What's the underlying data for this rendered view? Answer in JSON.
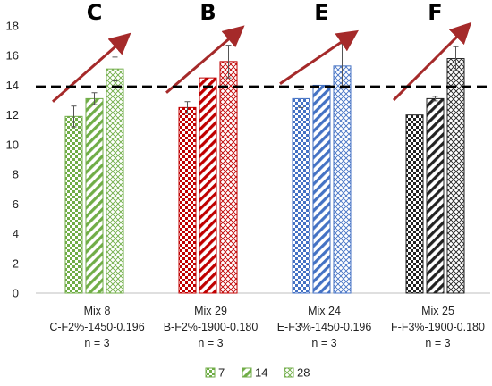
{
  "chart_data": {
    "type": "bar",
    "ylim": [
      0,
      18
    ],
    "yticks": [
      0,
      2,
      4,
      6,
      8,
      10,
      12,
      14,
      16,
      18
    ],
    "reference_line": 13.9,
    "legend": [
      "7",
      "14",
      "28"
    ],
    "groups": [
      {
        "letter": "C",
        "label_lines": [
          "Mix 8",
          "C-F2%-1450-0.196",
          "n = 3"
        ],
        "color": "#70ad47",
        "values": [
          11.9,
          13.1,
          15.1
        ],
        "errors": [
          0.7,
          0.4,
          0.8
        ]
      },
      {
        "letter": "B",
        "label_lines": [
          "Mix 29",
          "B-F2%-1900-0.180",
          "n = 3"
        ],
        "color": "#c00000",
        "values": [
          12.5,
          14.5,
          15.6
        ],
        "errors": [
          0.4,
          0.0,
          1.1
        ]
      },
      {
        "letter": "E",
        "label_lines": [
          "Mix 24",
          "E-F3%-1450-0.196",
          "n = 3"
        ],
        "color": "#4472c4",
        "values": [
          13.1,
          14.0,
          15.3
        ],
        "errors": [
          0.6,
          0.0,
          1.5
        ]
      },
      {
        "letter": "F",
        "label_lines": [
          "Mix 25",
          "F-F3%-1900-0.180",
          "n = 3"
        ],
        "color": "#222222",
        "values": [
          12.0,
          13.1,
          15.8
        ],
        "errors": [
          0.0,
          0.15,
          0.8
        ]
      }
    ],
    "colors": {
      "arrow": "#a52a2a",
      "reference": "#000000",
      "axis": "#bfbfbf",
      "legend_swatch": "#70ad47"
    }
  }
}
